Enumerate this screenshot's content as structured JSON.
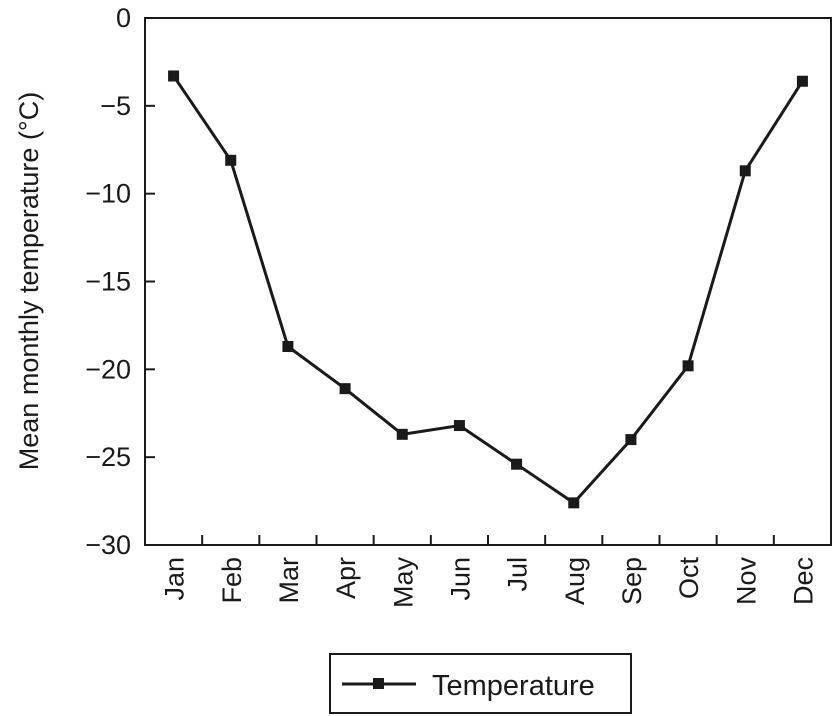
{
  "chart_data": {
    "type": "line",
    "categories": [
      "Jan",
      "Feb",
      "Mar",
      "Apr",
      "May",
      "Jun",
      "Jul",
      "Aug",
      "Sep",
      "Oct",
      "Nov",
      "Dec"
    ],
    "series": [
      {
        "name": "Temperature",
        "values": [
          -3.3,
          -8.1,
          -18.7,
          -21.1,
          -23.7,
          -23.2,
          -25.4,
          -27.6,
          -24.0,
          -19.8,
          -8.7,
          -3.6
        ],
        "marker": "square",
        "color": "#1a1a1a"
      }
    ],
    "ylabel": "Mean monthly temperature (°C)",
    "ylim": [
      -30,
      0
    ],
    "yticks": [
      0,
      -5,
      -10,
      -15,
      -20,
      -25,
      -30
    ],
    "ytick_labels": [
      "0",
      "−5",
      "−10",
      "−15",
      "−20",
      "−25",
      "−30"
    ],
    "grid": false,
    "legend": {
      "placement": "bottom-center",
      "entries": [
        "Temperature"
      ]
    }
  }
}
